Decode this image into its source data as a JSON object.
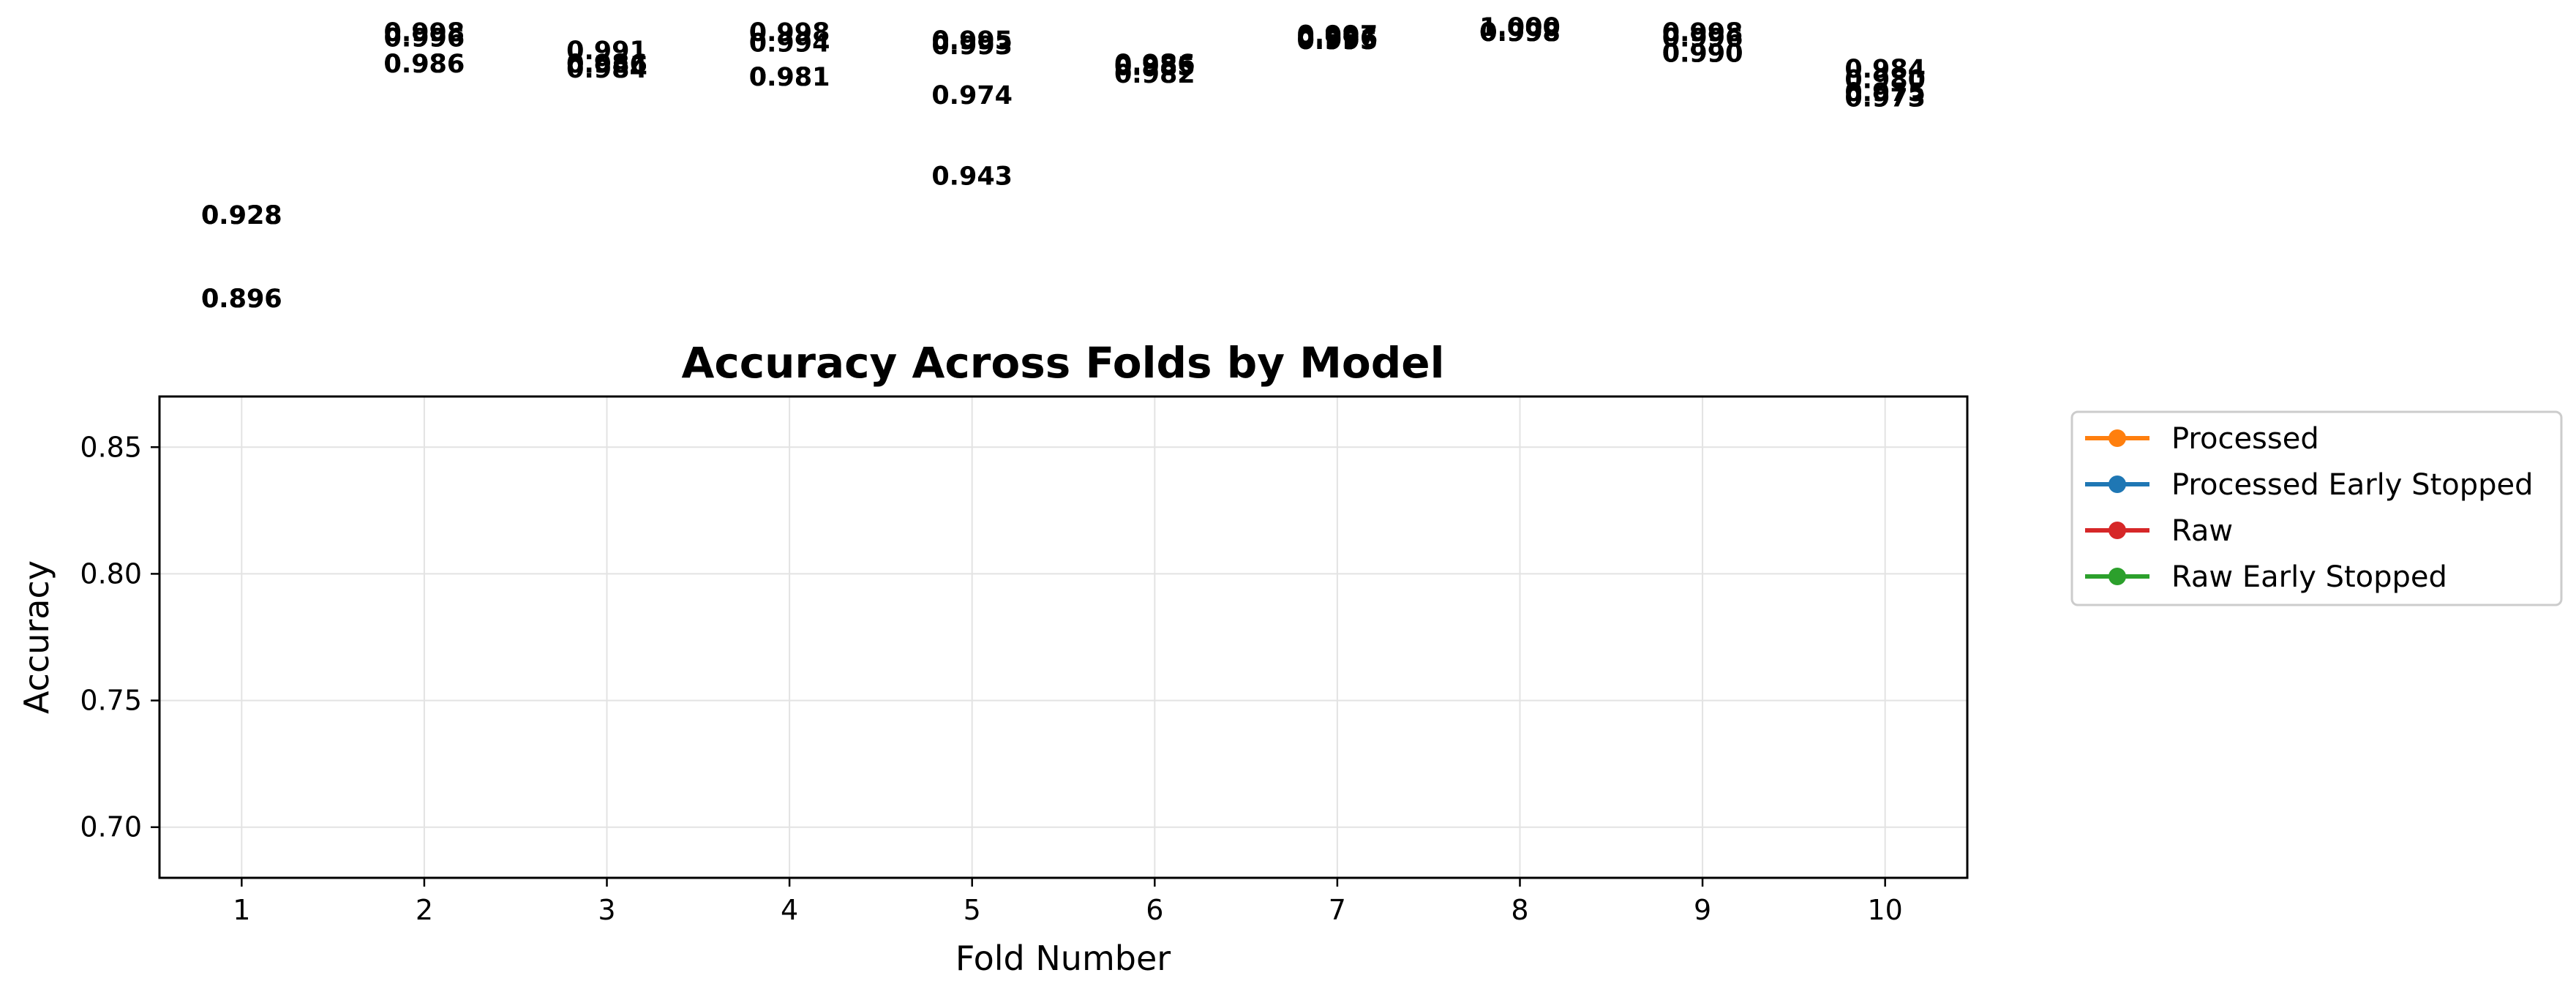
{
  "chart_data": {
    "type": "line",
    "title": "Accuracy Across Folds by Model",
    "xlabel": "Fold Number",
    "ylabel": "Accuracy",
    "x": [
      1,
      2,
      3,
      4,
      5,
      6,
      7,
      8,
      9,
      10
    ],
    "xlim": [
      0.55,
      10.45
    ],
    "ylim": [
      0.68,
      0.87
    ],
    "yticks": [
      "0.70",
      "0.75",
      "0.80",
      "0.85"
    ],
    "ytick_values": [
      0.7,
      0.75,
      0.8,
      0.85
    ],
    "xticks": [
      "1",
      "2",
      "3",
      "4",
      "5",
      "6",
      "7",
      "8",
      "9",
      "10"
    ],
    "grid": true,
    "legend_position": "outside-right-top",
    "series": [
      {
        "name": "Processed",
        "color": "#ff7f0e",
        "values": [
          0.928,
          0.996,
          0.984,
          0.998,
          0.993,
          0.986,
          0.997,
          0.998,
          0.996,
          0.98
        ],
        "labels": [
          "0.928",
          "0.996",
          "0.984",
          "0.998",
          "0.993",
          "0.986",
          "0.997",
          "0.998",
          "0.996",
          "0.980"
        ]
      },
      {
        "name": "Processed Early Stopped",
        "color": "#1f77b4",
        "values": [
          0.928,
          0.998,
          0.991,
          0.994,
          0.995,
          0.982,
          0.996,
          1.0,
          0.998,
          0.984
        ],
        "labels": [
          "0.928",
          "0.998",
          "0.991",
          "0.994",
          "0.995",
          "0.982",
          "0.996",
          "1.000",
          "0.998",
          "0.984"
        ]
      },
      {
        "name": "Raw",
        "color": "#d62728",
        "values": [
          0.896,
          0.986,
          0.986,
          0.981,
          0.974,
          0.985,
          0.995,
          0.998,
          0.99,
          0.973
        ],
        "labels": [
          "0.896",
          "0.986",
          "0.986",
          "0.981",
          "0.974",
          "0.985",
          "0.995",
          "0.998",
          "0.990",
          "0.973"
        ]
      },
      {
        "name": "Raw Early Stopped",
        "color": "#2ca02c",
        "values": [
          0.896,
          0.986,
          0.986,
          0.981,
          0.943,
          0.985,
          0.995,
          0.998,
          0.99,
          0.975
        ],
        "labels": [
          "0.896",
          "0.986",
          "0.986",
          "0.981",
          "0.943",
          "0.985",
          "0.995",
          "0.998",
          "0.990",
          "0.975"
        ]
      }
    ]
  }
}
